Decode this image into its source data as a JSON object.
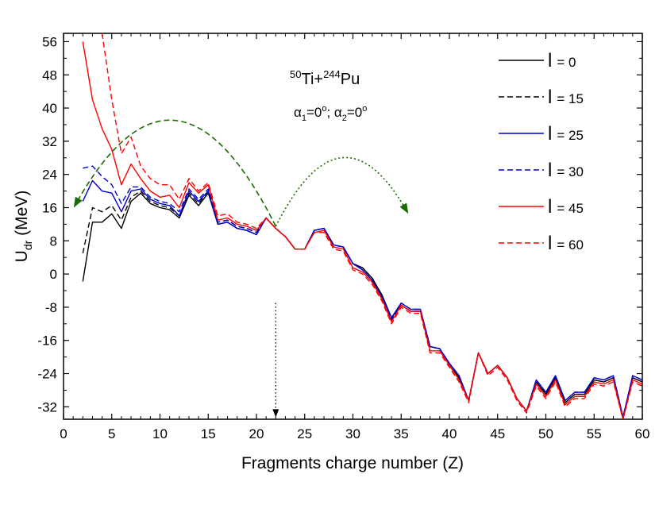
{
  "chart_data": {
    "type": "line",
    "title": "",
    "annotation": {
      "pre_50": "50",
      "ti": "Ti+",
      "pre_244": "244",
      "pu": "Pu",
      "angles": {
        "alpha": "α",
        "sub1": "1",
        "mid": "=0",
        "deg": "o",
        "sep": "; α",
        "sub2": "2",
        "end": "=0"
      }
    },
    "xlabel": "Fragments charge number (Z)",
    "ylabel": {
      "main": "U",
      "sub": "dr",
      "unit": " (MeV)"
    },
    "xlim": [
      0,
      60
    ],
    "ylim": [
      -35,
      58
    ],
    "xticks": [
      0,
      5,
      10,
      15,
      20,
      25,
      30,
      35,
      40,
      45,
      50,
      55,
      60
    ],
    "yticks": [
      56,
      48,
      40,
      32,
      24,
      16,
      8,
      0,
      -8,
      -16,
      -24,
      -32
    ],
    "xtick_labels": [
      "0",
      "5",
      "10",
      "15",
      "20",
      "25",
      "30",
      "35",
      "40",
      "45",
      "50",
      "55",
      "60"
    ],
    "ytick_labels": [
      "56",
      "48",
      "40",
      "32",
      "24",
      "16",
      "8",
      "0",
      "-8",
      "-16",
      "-24",
      "-32"
    ],
    "grid": false,
    "legend_position": "top-right",
    "legend_prefix": "l",
    "series": [
      {
        "name": "= 0",
        "color": "#000000",
        "dash": "solid",
        "x": [
          2,
          3,
          4,
          5,
          6,
          7,
          8,
          9,
          10,
          11,
          12,
          13,
          14,
          15,
          16,
          17,
          18,
          19,
          20,
          21,
          22,
          23,
          24,
          25,
          26,
          27,
          28,
          29,
          30,
          31,
          32,
          33,
          34,
          35,
          36,
          37,
          38,
          39,
          40,
          41,
          42,
          43,
          44,
          45,
          46,
          47,
          48,
          49,
          50,
          51,
          52,
          53,
          54,
          55,
          56,
          57,
          58,
          59,
          60
        ],
        "y": [
          -1.8,
          12.5,
          12.5,
          14.5,
          11,
          17.5,
          19.5,
          17,
          16,
          15.5,
          13.5,
          19,
          16.5,
          19.5,
          12,
          12.5,
          11,
          10.5,
          9.5,
          13.5,
          11,
          9,
          6,
          6,
          10.5,
          11,
          7,
          6.5,
          2.5,
          1.5,
          -1,
          -5,
          -10.5,
          -7.5,
          -9,
          -9,
          -17.5,
          -18,
          -22,
          -25,
          -30.5,
          -19,
          -24,
          -22,
          -25,
          -30,
          -33,
          -26,
          -29,
          -25,
          -31,
          -29,
          -29,
          -25.5,
          -26,
          -25,
          -34.5,
          -25,
          -26
        ]
      },
      {
        "name": "= 15",
        "color": "#000000",
        "dash": "dashed",
        "x": [
          2,
          3,
          4,
          5,
          6,
          7,
          8,
          9,
          10,
          11,
          12,
          13,
          14,
          15,
          16,
          17,
          18,
          19,
          20,
          21,
          22,
          23,
          24,
          25,
          26,
          27,
          28,
          29,
          30,
          31,
          32,
          33,
          34,
          35,
          36,
          37,
          38,
          39,
          40,
          41,
          42,
          43,
          44,
          45,
          46,
          47,
          48,
          49,
          50,
          51,
          52,
          53,
          54,
          55,
          56,
          57,
          58,
          59,
          60
        ],
        "y": [
          5,
          16,
          15,
          16.5,
          13,
          18.5,
          20,
          17.5,
          16.5,
          16,
          14,
          19.5,
          17,
          20,
          12.5,
          13,
          11.5,
          11,
          10,
          13.5,
          11,
          9,
          6,
          6,
          10.5,
          11,
          7,
          6.5,
          2.5,
          1.5,
          -1,
          -5.5,
          -11,
          -7.5,
          -9,
          -9,
          -17.5,
          -18,
          -22,
          -25,
          -30.5,
          -19,
          -24,
          -22,
          -25,
          -30,
          -33,
          -26,
          -29,
          -25,
          -31,
          -29,
          -29,
          -25.5,
          -26,
          -25,
          -34.5,
          -25,
          -26
        ]
      },
      {
        "name": "= 25",
        "color": "#0000cc",
        "dash": "solid",
        "x": [
          2,
          3,
          4,
          5,
          6,
          7,
          8,
          9,
          10,
          11,
          12,
          13,
          14,
          15,
          16,
          17,
          18,
          19,
          20,
          21,
          22,
          23,
          24,
          25,
          26,
          27,
          28,
          29,
          30,
          31,
          32,
          33,
          34,
          35,
          36,
          37,
          38,
          39,
          40,
          41,
          42,
          43,
          44,
          45,
          46,
          47,
          48,
          49,
          50,
          51,
          52,
          53,
          54,
          55,
          56,
          57,
          58,
          59,
          60
        ],
        "y": [
          17.5,
          22.5,
          20,
          19.5,
          15,
          20,
          20.5,
          18,
          17,
          16.5,
          14,
          20,
          17.5,
          20,
          12,
          12.5,
          11,
          10.5,
          9.5,
          13.5,
          11,
          9,
          6,
          6,
          10.5,
          11,
          7,
          6.5,
          2.5,
          1,
          -1.5,
          -5.5,
          -10.5,
          -7,
          -8.5,
          -8.5,
          -17.5,
          -18,
          -21.5,
          -24.5,
          -30.5,
          -19,
          -24,
          -22,
          -25,
          -30,
          -33,
          -25.5,
          -28.5,
          -24.5,
          -30.5,
          -28.5,
          -28.5,
          -25,
          -25.5,
          -24.5,
          -34.5,
          -24.5,
          -25.5
        ]
      },
      {
        "name": "= 30",
        "color": "#0000cc",
        "dash": "dashed",
        "x": [
          2,
          3,
          4,
          5,
          6,
          7,
          8,
          9,
          10,
          11,
          12,
          13,
          14,
          15,
          16,
          17,
          18,
          19,
          20,
          21,
          22,
          23,
          24,
          25,
          26,
          27,
          28,
          29,
          30,
          31,
          32,
          33,
          34,
          35,
          36,
          37,
          38,
          39,
          40,
          41,
          42,
          43,
          44,
          45,
          46,
          47,
          48,
          49,
          50,
          51,
          52,
          53,
          54,
          55,
          56,
          57,
          58,
          59,
          60
        ],
        "y": [
          25.5,
          26,
          23.5,
          21.5,
          17,
          21,
          21,
          18.5,
          17.5,
          17,
          15,
          20.5,
          18,
          20.5,
          12.5,
          13,
          11.5,
          11,
          10,
          13.5,
          11,
          9,
          6,
          6,
          10.5,
          11,
          7,
          6.5,
          2.5,
          1,
          -1.5,
          -5.5,
          -11,
          -7,
          -8.5,
          -8.5,
          -17.5,
          -18,
          -21.5,
          -24.5,
          -30.5,
          -19,
          -24,
          -22,
          -25,
          -30,
          -33,
          -25.5,
          -28.5,
          -24.5,
          -30.5,
          -28.5,
          -28.5,
          -25,
          -25.5,
          -24.5,
          -34.5,
          -24.5,
          -25.5
        ]
      },
      {
        "name": "= 45",
        "color": "#ff0000",
        "dash": "solid",
        "x": [
          2,
          3,
          4,
          5,
          6,
          7,
          8,
          9,
          10,
          11,
          12,
          13,
          14,
          15,
          16,
          17,
          18,
          19,
          20,
          21,
          22,
          23,
          24,
          25,
          26,
          27,
          28,
          29,
          30,
          31,
          32,
          33,
          34,
          35,
          36,
          37,
          38,
          39,
          40,
          41,
          42,
          43,
          44,
          45,
          46,
          47,
          48,
          49,
          50,
          51,
          52,
          53,
          54,
          55,
          56,
          57,
          58,
          59,
          60
        ],
        "y": [
          56,
          42,
          35,
          30,
          21.5,
          26.5,
          23,
          20,
          18.5,
          19,
          16,
          22,
          19.5,
          21.5,
          13,
          13.5,
          12,
          11.5,
          10.5,
          13.5,
          11,
          9,
          6,
          6,
          10,
          10.5,
          6.5,
          6,
          1.5,
          0.5,
          -2,
          -6,
          -11.5,
          -7.5,
          -9,
          -9,
          -18.5,
          -18.5,
          -22,
          -25.5,
          -30.5,
          -19,
          -24,
          -22,
          -25,
          -30,
          -33,
          -26.5,
          -29.5,
          -25.5,
          -31.5,
          -29.5,
          -29.5,
          -26,
          -26.5,
          -25.5,
          -35,
          -25.5,
          -26.5
        ]
      },
      {
        "name": "= 60",
        "color": "#ff0000",
        "dash": "dashed",
        "x": [
          4,
          5,
          6,
          7,
          8,
          9,
          10,
          11,
          12,
          13,
          14,
          15,
          16,
          17,
          18,
          19,
          20,
          21,
          22,
          23,
          24,
          25,
          26,
          27,
          28,
          29,
          30,
          31,
          32,
          33,
          34,
          35,
          36,
          37,
          38,
          39,
          40,
          41,
          42,
          43,
          44,
          45,
          46,
          47,
          48,
          49,
          50,
          51,
          52,
          53,
          54,
          55,
          56,
          57,
          58,
          59,
          60
        ],
        "y": [
          58,
          42,
          29,
          33,
          26,
          23,
          21.5,
          21.5,
          18,
          23,
          20,
          22,
          14,
          14.5,
          12.5,
          12,
          11,
          13.5,
          11,
          9,
          6,
          6,
          10,
          10,
          6,
          5.5,
          1,
          0,
          -2.5,
          -6.5,
          -12,
          -8,
          -9.5,
          -9.5,
          -19,
          -19,
          -22.5,
          -26,
          -31,
          -19,
          -24.5,
          -22.5,
          -25.5,
          -30.5,
          -33.5,
          -27,
          -30,
          -26,
          -32,
          -30,
          -30,
          -26.5,
          -27,
          -26,
          -35,
          -26,
          -27
        ]
      }
    ],
    "arrows": [
      {
        "type": "arc",
        "color": "#1a6b00",
        "dash": "dashed",
        "from": [
          22,
          11.5
        ],
        "to": [
          1.3,
          17
        ],
        "peak": 37
      },
      {
        "type": "arc",
        "color": "#1a6b00",
        "dash": "dotted",
        "from": [
          22,
          11.5
        ],
        "to": [
          35.5,
          15.5
        ],
        "peak": 28
      },
      {
        "type": "vertical",
        "color": "#000000",
        "dash": "dotted",
        "x": 22,
        "from": -7,
        "to": -34.5
      }
    ]
  }
}
